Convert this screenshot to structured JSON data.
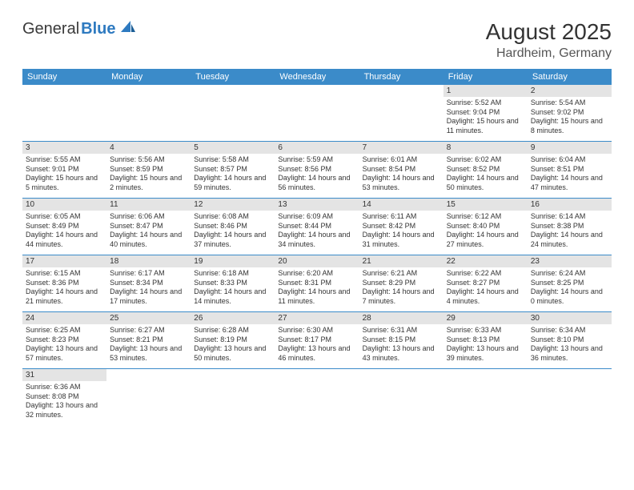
{
  "logo": {
    "text_general": "General",
    "text_blue": "Blue"
  },
  "title": "August 2025",
  "subtitle": "Hardheim, Germany",
  "colors": {
    "header_bg": "#3b8bc9",
    "header_fg": "#ffffff",
    "daynum_bg": "#e4e4e4",
    "rule": "#3b8bc9"
  },
  "day_headers": [
    "Sunday",
    "Monday",
    "Tuesday",
    "Wednesday",
    "Thursday",
    "Friday",
    "Saturday"
  ],
  "weeks": [
    [
      {
        "n": "",
        "sr": "",
        "ss": "",
        "dl": ""
      },
      {
        "n": "",
        "sr": "",
        "ss": "",
        "dl": ""
      },
      {
        "n": "",
        "sr": "",
        "ss": "",
        "dl": ""
      },
      {
        "n": "",
        "sr": "",
        "ss": "",
        "dl": ""
      },
      {
        "n": "",
        "sr": "",
        "ss": "",
        "dl": ""
      },
      {
        "n": "1",
        "sr": "Sunrise: 5:52 AM",
        "ss": "Sunset: 9:04 PM",
        "dl": "Daylight: 15 hours and 11 minutes."
      },
      {
        "n": "2",
        "sr": "Sunrise: 5:54 AM",
        "ss": "Sunset: 9:02 PM",
        "dl": "Daylight: 15 hours and 8 minutes."
      }
    ],
    [
      {
        "n": "3",
        "sr": "Sunrise: 5:55 AM",
        "ss": "Sunset: 9:01 PM",
        "dl": "Daylight: 15 hours and 5 minutes."
      },
      {
        "n": "4",
        "sr": "Sunrise: 5:56 AM",
        "ss": "Sunset: 8:59 PM",
        "dl": "Daylight: 15 hours and 2 minutes."
      },
      {
        "n": "5",
        "sr": "Sunrise: 5:58 AM",
        "ss": "Sunset: 8:57 PM",
        "dl": "Daylight: 14 hours and 59 minutes."
      },
      {
        "n": "6",
        "sr": "Sunrise: 5:59 AM",
        "ss": "Sunset: 8:56 PM",
        "dl": "Daylight: 14 hours and 56 minutes."
      },
      {
        "n": "7",
        "sr": "Sunrise: 6:01 AM",
        "ss": "Sunset: 8:54 PM",
        "dl": "Daylight: 14 hours and 53 minutes."
      },
      {
        "n": "8",
        "sr": "Sunrise: 6:02 AM",
        "ss": "Sunset: 8:52 PM",
        "dl": "Daylight: 14 hours and 50 minutes."
      },
      {
        "n": "9",
        "sr": "Sunrise: 6:04 AM",
        "ss": "Sunset: 8:51 PM",
        "dl": "Daylight: 14 hours and 47 minutes."
      }
    ],
    [
      {
        "n": "10",
        "sr": "Sunrise: 6:05 AM",
        "ss": "Sunset: 8:49 PM",
        "dl": "Daylight: 14 hours and 44 minutes."
      },
      {
        "n": "11",
        "sr": "Sunrise: 6:06 AM",
        "ss": "Sunset: 8:47 PM",
        "dl": "Daylight: 14 hours and 40 minutes."
      },
      {
        "n": "12",
        "sr": "Sunrise: 6:08 AM",
        "ss": "Sunset: 8:46 PM",
        "dl": "Daylight: 14 hours and 37 minutes."
      },
      {
        "n": "13",
        "sr": "Sunrise: 6:09 AM",
        "ss": "Sunset: 8:44 PM",
        "dl": "Daylight: 14 hours and 34 minutes."
      },
      {
        "n": "14",
        "sr": "Sunrise: 6:11 AM",
        "ss": "Sunset: 8:42 PM",
        "dl": "Daylight: 14 hours and 31 minutes."
      },
      {
        "n": "15",
        "sr": "Sunrise: 6:12 AM",
        "ss": "Sunset: 8:40 PM",
        "dl": "Daylight: 14 hours and 27 minutes."
      },
      {
        "n": "16",
        "sr": "Sunrise: 6:14 AM",
        "ss": "Sunset: 8:38 PM",
        "dl": "Daylight: 14 hours and 24 minutes."
      }
    ],
    [
      {
        "n": "17",
        "sr": "Sunrise: 6:15 AM",
        "ss": "Sunset: 8:36 PM",
        "dl": "Daylight: 14 hours and 21 minutes."
      },
      {
        "n": "18",
        "sr": "Sunrise: 6:17 AM",
        "ss": "Sunset: 8:34 PM",
        "dl": "Daylight: 14 hours and 17 minutes."
      },
      {
        "n": "19",
        "sr": "Sunrise: 6:18 AM",
        "ss": "Sunset: 8:33 PM",
        "dl": "Daylight: 14 hours and 14 minutes."
      },
      {
        "n": "20",
        "sr": "Sunrise: 6:20 AM",
        "ss": "Sunset: 8:31 PM",
        "dl": "Daylight: 14 hours and 11 minutes."
      },
      {
        "n": "21",
        "sr": "Sunrise: 6:21 AM",
        "ss": "Sunset: 8:29 PM",
        "dl": "Daylight: 14 hours and 7 minutes."
      },
      {
        "n": "22",
        "sr": "Sunrise: 6:22 AM",
        "ss": "Sunset: 8:27 PM",
        "dl": "Daylight: 14 hours and 4 minutes."
      },
      {
        "n": "23",
        "sr": "Sunrise: 6:24 AM",
        "ss": "Sunset: 8:25 PM",
        "dl": "Daylight: 14 hours and 0 minutes."
      }
    ],
    [
      {
        "n": "24",
        "sr": "Sunrise: 6:25 AM",
        "ss": "Sunset: 8:23 PM",
        "dl": "Daylight: 13 hours and 57 minutes."
      },
      {
        "n": "25",
        "sr": "Sunrise: 6:27 AM",
        "ss": "Sunset: 8:21 PM",
        "dl": "Daylight: 13 hours and 53 minutes."
      },
      {
        "n": "26",
        "sr": "Sunrise: 6:28 AM",
        "ss": "Sunset: 8:19 PM",
        "dl": "Daylight: 13 hours and 50 minutes."
      },
      {
        "n": "27",
        "sr": "Sunrise: 6:30 AM",
        "ss": "Sunset: 8:17 PM",
        "dl": "Daylight: 13 hours and 46 minutes."
      },
      {
        "n": "28",
        "sr": "Sunrise: 6:31 AM",
        "ss": "Sunset: 8:15 PM",
        "dl": "Daylight: 13 hours and 43 minutes."
      },
      {
        "n": "29",
        "sr": "Sunrise: 6:33 AM",
        "ss": "Sunset: 8:13 PM",
        "dl": "Daylight: 13 hours and 39 minutes."
      },
      {
        "n": "30",
        "sr": "Sunrise: 6:34 AM",
        "ss": "Sunset: 8:10 PM",
        "dl": "Daylight: 13 hours and 36 minutes."
      }
    ],
    [
      {
        "n": "31",
        "sr": "Sunrise: 6:36 AM",
        "ss": "Sunset: 8:08 PM",
        "dl": "Daylight: 13 hours and 32 minutes."
      },
      {
        "n": "",
        "sr": "",
        "ss": "",
        "dl": ""
      },
      {
        "n": "",
        "sr": "",
        "ss": "",
        "dl": ""
      },
      {
        "n": "",
        "sr": "",
        "ss": "",
        "dl": ""
      },
      {
        "n": "",
        "sr": "",
        "ss": "",
        "dl": ""
      },
      {
        "n": "",
        "sr": "",
        "ss": "",
        "dl": ""
      },
      {
        "n": "",
        "sr": "",
        "ss": "",
        "dl": ""
      }
    ]
  ]
}
